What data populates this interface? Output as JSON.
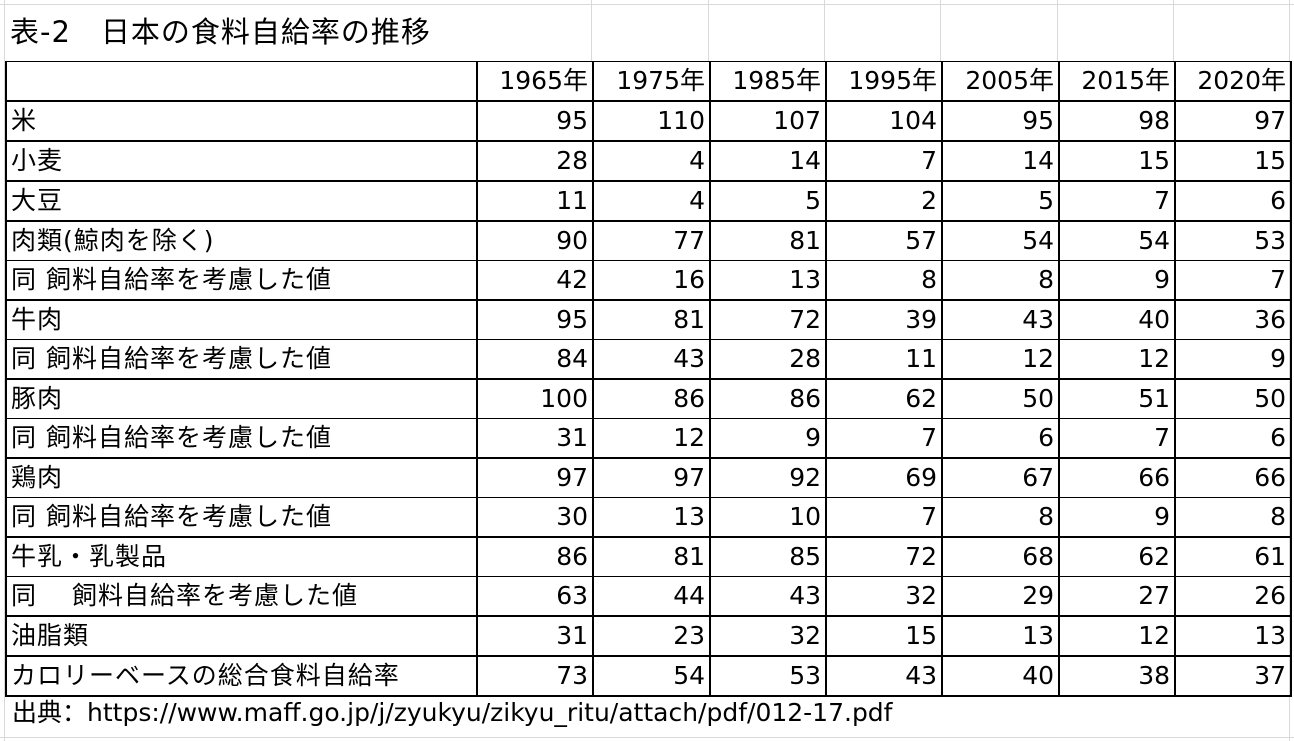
{
  "title": "表-2　日本の食料自給率の推移",
  "columns": [
    "1965年",
    "1975年",
    "1985年",
    "1995年",
    "2005年",
    "2015年",
    "2020年"
  ],
  "rows": [
    {
      "label": "米",
      "values": [
        "95",
        "110",
        "107",
        "104",
        "95",
        "98",
        "97"
      ]
    },
    {
      "label": "小麦",
      "values": [
        "28",
        "4",
        "14",
        "7",
        "14",
        "15",
        "15"
      ]
    },
    {
      "label": "大豆",
      "values": [
        "11",
        "4",
        "5",
        "2",
        "5",
        "7",
        "6"
      ]
    },
    {
      "label": "肉類(鯨肉を除く)",
      "values": [
        "90",
        "77",
        "81",
        "57",
        "54",
        "54",
        "53"
      ]
    },
    {
      "label": "同 飼料自給率を考慮した値",
      "values": [
        "42",
        "16",
        "13",
        "8",
        "8",
        "9",
        "7"
      ]
    },
    {
      "label": "牛肉",
      "values": [
        "95",
        "81",
        "72",
        "39",
        "43",
        "40",
        "36"
      ]
    },
    {
      "label": "同 飼料自給率を考慮した値",
      "values": [
        "84",
        "43",
        "28",
        "11",
        "12",
        "12",
        "9"
      ]
    },
    {
      "label": "豚肉",
      "values": [
        "100",
        "86",
        "86",
        "62",
        "50",
        "51",
        "50"
      ]
    },
    {
      "label": "同 飼料自給率を考慮した値",
      "values": [
        "31",
        "12",
        "9",
        "7",
        "6",
        "7",
        "6"
      ]
    },
    {
      "label": "鶏肉",
      "values": [
        "97",
        "97",
        "92",
        "69",
        "67",
        "66",
        "66"
      ]
    },
    {
      "label": "同 飼料自給率を考慮した値",
      "values": [
        "30",
        "13",
        "10",
        "7",
        "8",
        "9",
        "8"
      ]
    },
    {
      "label": "牛乳・乳製品",
      "values": [
        "86",
        "81",
        "85",
        "72",
        "68",
        "62",
        "61"
      ]
    },
    {
      "label": "同　 飼料自給率を考慮した値",
      "values": [
        "63",
        "44",
        "43",
        "32",
        "29",
        "27",
        "26"
      ]
    },
    {
      "label": "油脂類",
      "values": [
        "31",
        "23",
        "32",
        "15",
        "13",
        "12",
        "13"
      ]
    },
    {
      "label": "カロリーベースの総合食料自給率",
      "values": [
        "73",
        "54",
        "53",
        "43",
        "40",
        "38",
        "37"
      ]
    }
  ],
  "source": "出典：https://www.maff.go.jp/j/zyukyu/zikyu_ritu/attach/pdf/012-17.pdf"
}
